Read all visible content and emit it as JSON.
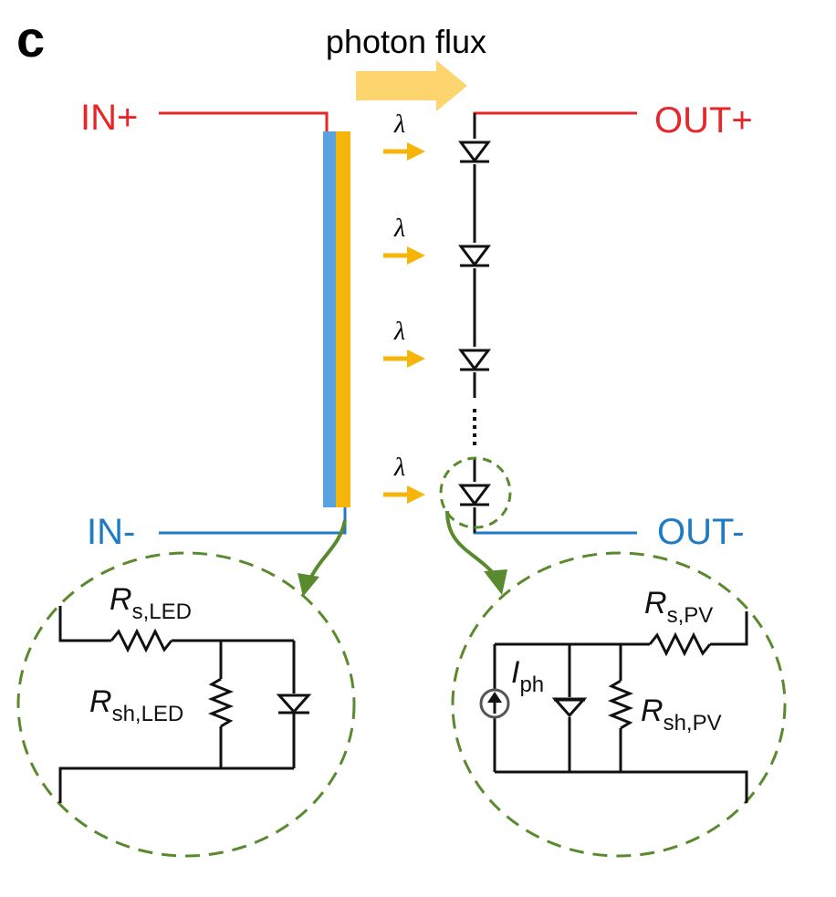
{
  "panel_label": "c",
  "photon_flux_label": "photon flux",
  "terminals": {
    "in_plus": "IN+",
    "in_minus": "IN-",
    "out_plus": "OUT+",
    "out_minus": "OUT-"
  },
  "lambda_symbol": "λ",
  "led_circuit": {
    "rs_main": "R",
    "rs_sub": "s,LED",
    "rsh_main": "R",
    "rsh_sub": "sh,LED"
  },
  "pv_circuit": {
    "rs_main": "R",
    "rs_sub": "s,PV",
    "rsh_main": "R",
    "rsh_sub": "sh,PV",
    "iph_main": "I",
    "iph_sub": "ph"
  },
  "colors": {
    "positive_wire": "#e8262a",
    "negative_wire": "#1f7cc4",
    "led_blue": "#5aa3e0",
    "led_yellow": "#f5b50a",
    "photon_arrow": "#f5b50a",
    "photon_flux_arrow": "#fdd56e",
    "callout_green": "#5a8a2e",
    "circuit": "#111111"
  }
}
